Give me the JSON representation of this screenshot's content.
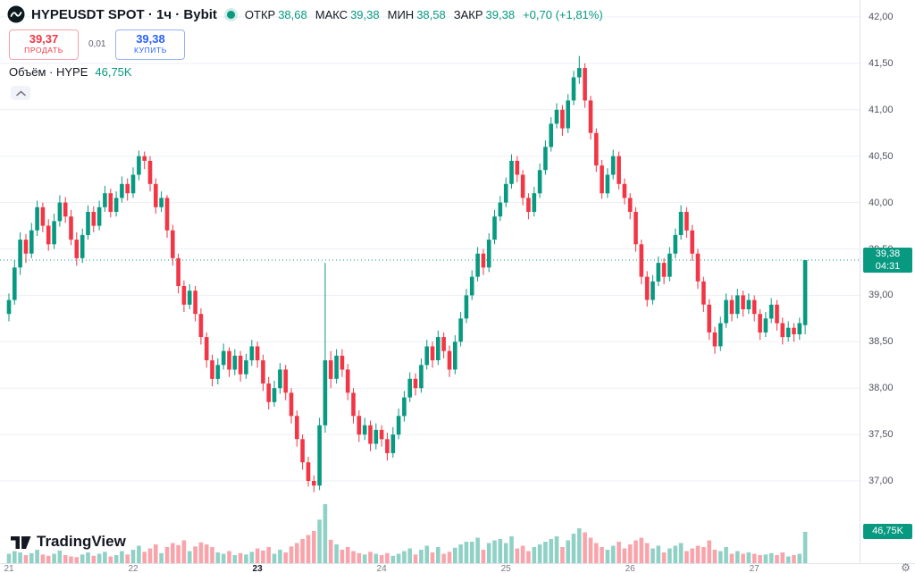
{
  "header": {
    "symbol_title": "HYPEUSDT SPOT · 1ч · Bybit",
    "ohlc": {
      "open_label": "ОТКР",
      "open": "38,68",
      "high_label": "МАКС",
      "high": "39,38",
      "low_label": "МИН",
      "low": "38,58",
      "close_label": "ЗАКР",
      "close": "39,38",
      "change": "+0,70 (+1,81%)"
    },
    "sell": {
      "price": "39,37",
      "label": "ПРОДАТЬ"
    },
    "spread": "0,01",
    "buy": {
      "price": "39,38",
      "label": "КУПИТЬ"
    },
    "volume_label": "Объём · HYPE",
    "volume_value": "46,75K"
  },
  "colors": {
    "up": "#089981",
    "down": "#f23645",
    "buy": "#2962ff",
    "sell": "#f23645",
    "grid": "#edeff4"
  },
  "price_axis": {
    "labels": [
      "42,00",
      "41,50",
      "41,00",
      "40,50",
      "40,00",
      "39,50",
      "39,00",
      "38,50",
      "38,00",
      "37,50",
      "37,00"
    ]
  },
  "time_axis": {
    "labels": [
      {
        "text": "21",
        "bold": false
      },
      {
        "text": "22",
        "bold": false
      },
      {
        "text": "23",
        "bold": true
      },
      {
        "text": "24",
        "bold": false
      },
      {
        "text": "25",
        "bold": false
      },
      {
        "text": "26",
        "bold": false
      },
      {
        "text": "27",
        "bold": false
      }
    ]
  },
  "last_price_badge": {
    "price": "39,38",
    "countdown": "04:31"
  },
  "volume_badge": {
    "value": "46,75K"
  },
  "footer": {
    "logo_text": "TradingView"
  },
  "icons": {
    "gear": "⚙"
  },
  "chart_data": {
    "type": "candlestick",
    "title": "HYPEUSDT SPOT · 1ч · Bybit",
    "symbol": "HYPEUSDT SPOT",
    "interval": "1ч",
    "exchange": "Bybit",
    "last_price": 39.38,
    "last_candle": {
      "open": 38.68,
      "high": 39.38,
      "low": 38.58,
      "close": 39.38,
      "change": "+0,70 (+1,81%)"
    },
    "current_volume_k": 46.75,
    "y_range_visible": [
      37.0,
      42.0
    ],
    "price_levels": [
      42.0,
      41.5,
      41.0,
      40.5,
      40.0,
      39.5,
      39.0,
      38.5,
      38.0,
      37.5,
      37.0
    ],
    "x_tick_labels": [
      "21",
      "22",
      "23",
      "24",
      "25",
      "26",
      "27"
    ],
    "candles_per_day": 22,
    "legend_note": "candles are [open,high,low,close], hourly, estimated from chart",
    "candles": [
      [
        38.8,
        39.02,
        38.72,
        38.95
      ],
      [
        38.95,
        39.38,
        38.9,
        39.3
      ],
      [
        39.3,
        39.68,
        39.22,
        39.6
      ],
      [
        39.6,
        39.66,
        39.35,
        39.45
      ],
      [
        39.45,
        39.78,
        39.4,
        39.7
      ],
      [
        39.7,
        40.02,
        39.64,
        39.95
      ],
      [
        39.95,
        40.0,
        39.68,
        39.75
      ],
      [
        39.75,
        39.82,
        39.48,
        39.55
      ],
      [
        39.55,
        39.88,
        39.5,
        39.8
      ],
      [
        39.8,
        40.08,
        39.74,
        40.0
      ],
      [
        40.0,
        40.06,
        39.78,
        39.85
      ],
      [
        39.85,
        39.92,
        39.54,
        39.6
      ],
      [
        39.6,
        39.68,
        39.32,
        39.4
      ],
      [
        39.4,
        39.72,
        39.35,
        39.65
      ],
      [
        39.65,
        39.97,
        39.6,
        39.9
      ],
      [
        39.9,
        39.96,
        39.68,
        39.75
      ],
      [
        39.75,
        40.02,
        39.7,
        39.95
      ],
      [
        39.95,
        40.18,
        39.9,
        40.1
      ],
      [
        40.1,
        40.15,
        39.84,
        39.9
      ],
      [
        39.9,
        40.12,
        39.85,
        40.05
      ],
      [
        40.05,
        40.28,
        40.0,
        40.2
      ],
      [
        40.2,
        40.26,
        40.02,
        40.1
      ],
      [
        40.1,
        40.38,
        40.05,
        40.3
      ],
      [
        40.3,
        40.56,
        40.24,
        40.5
      ],
      [
        40.5,
        40.55,
        40.36,
        40.45
      ],
      [
        40.45,
        40.5,
        40.12,
        40.2
      ],
      [
        40.2,
        40.26,
        39.88,
        39.95
      ],
      [
        39.95,
        40.12,
        39.9,
        40.05
      ],
      [
        40.05,
        40.08,
        39.62,
        39.7
      ],
      [
        39.7,
        39.76,
        39.32,
        39.4
      ],
      [
        39.4,
        39.45,
        39.02,
        39.1
      ],
      [
        39.1,
        39.16,
        38.82,
        38.9
      ],
      [
        38.9,
        39.12,
        38.85,
        39.05
      ],
      [
        39.05,
        39.1,
        38.72,
        38.8
      ],
      [
        38.8,
        38.86,
        38.47,
        38.55
      ],
      [
        38.55,
        38.6,
        38.22,
        38.3
      ],
      [
        38.3,
        38.36,
        38.02,
        38.1
      ],
      [
        38.1,
        38.32,
        38.04,
        38.25
      ],
      [
        38.25,
        38.48,
        38.2,
        38.4
      ],
      [
        38.4,
        38.44,
        38.12,
        38.2
      ],
      [
        38.2,
        38.42,
        38.14,
        38.35
      ],
      [
        38.35,
        38.4,
        38.07,
        38.15
      ],
      [
        38.15,
        38.37,
        38.1,
        38.3
      ],
      [
        38.3,
        38.52,
        38.24,
        38.45
      ],
      [
        38.45,
        38.5,
        38.22,
        38.3
      ],
      [
        38.3,
        38.36,
        37.97,
        38.05
      ],
      [
        38.05,
        38.12,
        37.77,
        37.85
      ],
      [
        37.85,
        38.08,
        37.8,
        38.0
      ],
      [
        38.0,
        38.27,
        37.94,
        38.2
      ],
      [
        38.2,
        38.25,
        37.87,
        37.95
      ],
      [
        37.95,
        38.0,
        37.62,
        37.7
      ],
      [
        37.7,
        37.76,
        37.37,
        37.45
      ],
      [
        37.45,
        37.5,
        37.12,
        37.2
      ],
      [
        37.2,
        37.26,
        36.94,
        37.0
      ],
      [
        37.0,
        37.06,
        36.88,
        36.95
      ],
      [
        36.95,
        37.68,
        36.9,
        37.6
      ],
      [
        37.6,
        39.35,
        37.52,
        38.3
      ],
      [
        38.3,
        38.4,
        38.0,
        38.1
      ],
      [
        38.1,
        38.42,
        38.05,
        38.35
      ],
      [
        38.35,
        38.42,
        38.12,
        38.2
      ],
      [
        38.2,
        38.26,
        37.87,
        37.95
      ],
      [
        37.95,
        38.0,
        37.62,
        37.7
      ],
      [
        37.7,
        37.76,
        37.42,
        37.5
      ],
      [
        37.5,
        37.68,
        37.44,
        37.6
      ],
      [
        37.6,
        37.65,
        37.32,
        37.4
      ],
      [
        37.4,
        37.62,
        37.34,
        37.55
      ],
      [
        37.55,
        37.6,
        37.37,
        37.45
      ],
      [
        37.45,
        37.52,
        37.22,
        37.3
      ],
      [
        37.3,
        37.58,
        37.25,
        37.5
      ],
      [
        37.5,
        37.78,
        37.45,
        37.7
      ],
      [
        37.7,
        37.97,
        37.64,
        37.9
      ],
      [
        37.9,
        38.17,
        37.85,
        38.1
      ],
      [
        38.1,
        38.16,
        37.92,
        38.0
      ],
      [
        38.0,
        38.32,
        37.95,
        38.25
      ],
      [
        38.25,
        38.52,
        38.2,
        38.45
      ],
      [
        38.45,
        38.5,
        38.22,
        38.3
      ],
      [
        38.3,
        38.62,
        38.25,
        38.55
      ],
      [
        38.55,
        38.6,
        38.32,
        38.4
      ],
      [
        38.4,
        38.46,
        38.12,
        38.2
      ],
      [
        38.2,
        38.57,
        38.15,
        38.5
      ],
      [
        38.5,
        38.82,
        38.45,
        38.75
      ],
      [
        38.75,
        39.07,
        38.7,
        39.0
      ],
      [
        39.0,
        39.27,
        38.95,
        39.2
      ],
      [
        39.2,
        39.52,
        39.15,
        39.45
      ],
      [
        39.45,
        39.5,
        39.22,
        39.3
      ],
      [
        39.3,
        39.67,
        39.25,
        39.6
      ],
      [
        39.6,
        39.92,
        39.55,
        39.85
      ],
      [
        39.85,
        40.07,
        39.8,
        40.0
      ],
      [
        40.0,
        40.27,
        39.95,
        40.2
      ],
      [
        40.2,
        40.52,
        40.15,
        40.45
      ],
      [
        40.45,
        40.5,
        40.22,
        40.3
      ],
      [
        40.3,
        40.35,
        39.97,
        40.05
      ],
      [
        40.05,
        40.1,
        39.82,
        39.9
      ],
      [
        39.9,
        40.17,
        39.85,
        40.1
      ],
      [
        40.1,
        40.42,
        40.05,
        40.35
      ],
      [
        40.35,
        40.67,
        40.3,
        40.6
      ],
      [
        40.6,
        40.92,
        40.55,
        40.85
      ],
      [
        40.85,
        41.07,
        40.8,
        41.0
      ],
      [
        41.0,
        41.05,
        40.72,
        40.8
      ],
      [
        40.8,
        41.17,
        40.75,
        41.1
      ],
      [
        41.1,
        41.42,
        41.05,
        41.35
      ],
      [
        41.35,
        41.58,
        41.28,
        41.45
      ],
      [
        41.45,
        41.5,
        41.02,
        41.1
      ],
      [
        41.1,
        41.15,
        40.68,
        40.75
      ],
      [
        40.75,
        40.8,
        40.33,
        40.4
      ],
      [
        40.4,
        40.46,
        40.04,
        40.1
      ],
      [
        40.1,
        40.37,
        40.05,
        40.3
      ],
      [
        40.3,
        40.57,
        40.25,
        40.5
      ],
      [
        40.5,
        40.55,
        40.14,
        40.2
      ],
      [
        40.2,
        40.26,
        39.98,
        40.05
      ],
      [
        40.05,
        40.1,
        39.82,
        39.9
      ],
      [
        39.9,
        39.95,
        39.47,
        39.55
      ],
      [
        39.55,
        39.6,
        39.12,
        39.2
      ],
      [
        39.2,
        39.26,
        38.88,
        38.95
      ],
      [
        38.95,
        39.22,
        38.9,
        39.15
      ],
      [
        39.15,
        39.42,
        39.1,
        39.35
      ],
      [
        39.35,
        39.4,
        39.12,
        39.2
      ],
      [
        39.2,
        39.52,
        39.15,
        39.45
      ],
      [
        39.45,
        39.72,
        39.4,
        39.65
      ],
      [
        39.65,
        39.97,
        39.6,
        39.9
      ],
      [
        39.9,
        39.95,
        39.62,
        39.7
      ],
      [
        39.7,
        39.76,
        39.37,
        39.45
      ],
      [
        39.45,
        39.5,
        39.07,
        39.15
      ],
      [
        39.15,
        39.2,
        38.82,
        38.9
      ],
      [
        38.9,
        38.96,
        38.52,
        38.6
      ],
      [
        38.6,
        38.66,
        38.37,
        38.45
      ],
      [
        38.45,
        38.77,
        38.4,
        38.7
      ],
      [
        38.7,
        39.02,
        38.65,
        38.95
      ],
      [
        38.95,
        39.0,
        38.72,
        38.8
      ],
      [
        38.8,
        39.07,
        38.75,
        39.0
      ],
      [
        39.0,
        39.05,
        38.77,
        38.85
      ],
      [
        38.85,
        39.02,
        38.8,
        38.95
      ],
      [
        38.95,
        39.0,
        38.72,
        38.8
      ],
      [
        38.8,
        38.85,
        38.52,
        38.6
      ],
      [
        38.6,
        38.82,
        38.55,
        38.75
      ],
      [
        38.75,
        38.97,
        38.7,
        38.9
      ],
      [
        38.9,
        38.95,
        38.62,
        38.7
      ],
      [
        38.7,
        38.76,
        38.47,
        38.55
      ],
      [
        38.55,
        38.72,
        38.5,
        38.65
      ],
      [
        38.65,
        38.7,
        38.5,
        38.58
      ],
      [
        38.58,
        38.76,
        38.52,
        38.7
      ],
      [
        38.68,
        39.38,
        38.58,
        39.38
      ]
    ],
    "volumes_k": [
      14,
      18,
      16,
      12,
      15,
      20,
      13,
      11,
      14,
      19,
      12,
      10,
      9,
      13,
      16,
      11,
      14,
      17,
      10,
      12,
      18,
      13,
      20,
      26,
      17,
      22,
      28,
      15,
      24,
      30,
      27,
      34,
      18,
      25,
      31,
      28,
      24,
      16,
      14,
      18,
      12,
      15,
      13,
      17,
      22,
      19,
      24,
      14,
      20,
      16,
      25,
      30,
      36,
      42,
      48,
      65,
      88,
      35,
      28,
      20,
      24,
      18,
      15,
      13,
      17,
      14,
      12,
      15,
      11,
      14,
      18,
      22,
      13,
      20,
      26,
      16,
      24,
      14,
      17,
      23,
      28,
      32,
      32,
      38,
      20,
      30,
      34,
      36,
      30,
      40,
      22,
      26,
      18,
      24,
      28,
      32,
      36,
      40,
      24,
      34,
      44,
      52,
      46,
      38,
      30,
      24,
      20,
      26,
      32,
      22,
      28,
      34,
      38,
      30,
      22,
      26,
      16,
      22,
      26,
      30,
      18,
      22,
      26,
      24,
      34,
      20,
      18,
      24,
      14,
      18,
      14,
      16,
      14,
      12,
      13,
      15,
      12,
      16,
      10,
      12,
      14,
      46.75
    ]
  }
}
